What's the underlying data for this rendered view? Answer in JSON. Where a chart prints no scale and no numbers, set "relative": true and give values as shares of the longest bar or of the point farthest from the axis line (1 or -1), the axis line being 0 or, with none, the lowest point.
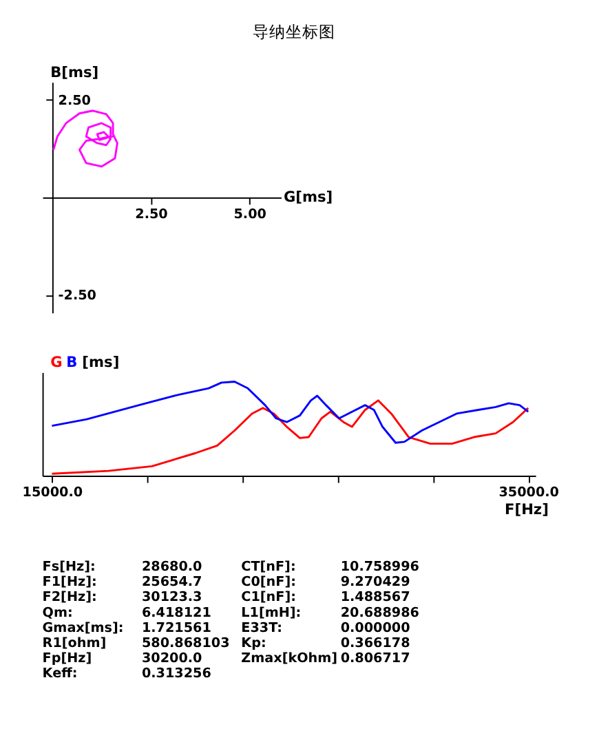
{
  "chart_data": [
    {
      "type": "line",
      "title": "导纳坐标图",
      "xlabel": "G[ms]",
      "ylabel": "B[ms]",
      "xlim": [
        -0.25,
        5.8
      ],
      "ylim": [
        -2.95,
        2.95
      ],
      "xticks": [
        {
          "value": 2.5,
          "label": "2.50"
        },
        {
          "value": 5.0,
          "label": "5.00"
        }
      ],
      "yticks": [
        {
          "value": 2.5,
          "label": "2.50"
        },
        {
          "value": -2.5,
          "label": "-2.50"
        }
      ],
      "grid": false,
      "legend": false,
      "marker": "none",
      "line_style": "solid",
      "series": [
        {
          "color": "#ff00ff",
          "x": [
            0.03,
            0.13,
            0.35,
            0.69,
            1.03,
            1.37,
            1.54,
            1.54,
            1.65,
            1.59,
            1.25,
            0.86,
            0.69,
            0.86,
            1.2,
            1.48,
            1.48,
            1.25,
            0.92,
            0.86,
            1.14,
            1.37,
            1.48,
            1.31,
            1.14,
            1.2,
            1.43,
            1.54
          ],
          "values": [
            1.22,
            1.56,
            1.9,
            2.15,
            2.22,
            2.13,
            1.9,
            1.62,
            1.39,
            1.0,
            0.79,
            0.88,
            1.22,
            1.45,
            1.5,
            1.56,
            1.79,
            1.9,
            1.79,
            1.56,
            1.39,
            1.34,
            1.5,
            1.67,
            1.62,
            1.47,
            1.54,
            1.56
          ]
        }
      ]
    },
    {
      "type": "line",
      "xlabel": "F[Hz]",
      "ylabel": "[ms]",
      "relative": true,
      "xlim": [
        14600,
        35300
      ],
      "xticks": [
        {
          "value": 15000,
          "label": "15000.0"
        },
        {
          "value": 19000,
          "label": null
        },
        {
          "value": 23000,
          "label": null
        },
        {
          "value": 27000,
          "label": null
        },
        {
          "value": 31000,
          "label": null
        },
        {
          "value": 35000,
          "label": "35000.0"
        }
      ],
      "grid": false,
      "legend": false,
      "marker": "none",
      "line_style": "solid",
      "series": [
        {
          "name": "G",
          "color": "#ff0000",
          "x": [
            15000,
            17370,
            19200,
            21030,
            21940,
            22670,
            23400,
            23860,
            24320,
            24860,
            25410,
            25780,
            26320,
            26690,
            27240,
            27600,
            28150,
            28700,
            29250,
            29980,
            30890,
            31800,
            32720,
            33630,
            34360,
            35000
          ],
          "values": [
            0.02,
            0.05,
            0.1,
            0.24,
            0.32,
            0.48,
            0.66,
            0.72,
            0.66,
            0.52,
            0.4,
            0.41,
            0.61,
            0.68,
            0.57,
            0.52,
            0.7,
            0.8,
            0.66,
            0.41,
            0.34,
            0.34,
            0.41,
            0.45,
            0.57,
            0.72
          ]
        },
        {
          "name": "B",
          "color": "#0000ff",
          "x": [
            15000,
            16460,
            18650,
            20300,
            21580,
            22120,
            22670,
            23220,
            23950,
            24410,
            24860,
            25410,
            25870,
            26140,
            26510,
            27060,
            27600,
            28150,
            28520,
            28880,
            29430,
            29800,
            30530,
            31260,
            31990,
            32900,
            33630,
            34180,
            34640,
            35000
          ],
          "values": [
            0.53,
            0.6,
            0.75,
            0.86,
            0.93,
            0.99,
            1.0,
            0.93,
            0.75,
            0.61,
            0.57,
            0.64,
            0.8,
            0.85,
            0.75,
            0.61,
            0.68,
            0.75,
            0.7,
            0.52,
            0.35,
            0.36,
            0.48,
            0.57,
            0.66,
            0.7,
            0.73,
            0.77,
            0.75,
            0.68
          ]
        }
      ]
    },
    {
      "type": "other",
      "annotations": [
        "Fs[Hz]:",
        "28680.0",
        "CT[nF]:",
        "10.758996",
        "F1[Hz]:",
        "25654.7",
        "C0[nF]:",
        "9.270429",
        "F2[Hz]:",
        "30123.3",
        "C1[nF]:",
        "1.488567",
        "Qm:",
        "6.418121",
        "L1[mH]:",
        "20.688986",
        "Gmax[ms]:",
        "1.721561",
        "E33T:",
        "0.000000",
        "R1[ohm]",
        "580.868103",
        "Kp:",
        "0.366178",
        "Fp[Hz]",
        "30200.0",
        "Zmax[kOhm]",
        "0.806717",
        "Keff:",
        "0.313256"
      ]
    }
  ]
}
